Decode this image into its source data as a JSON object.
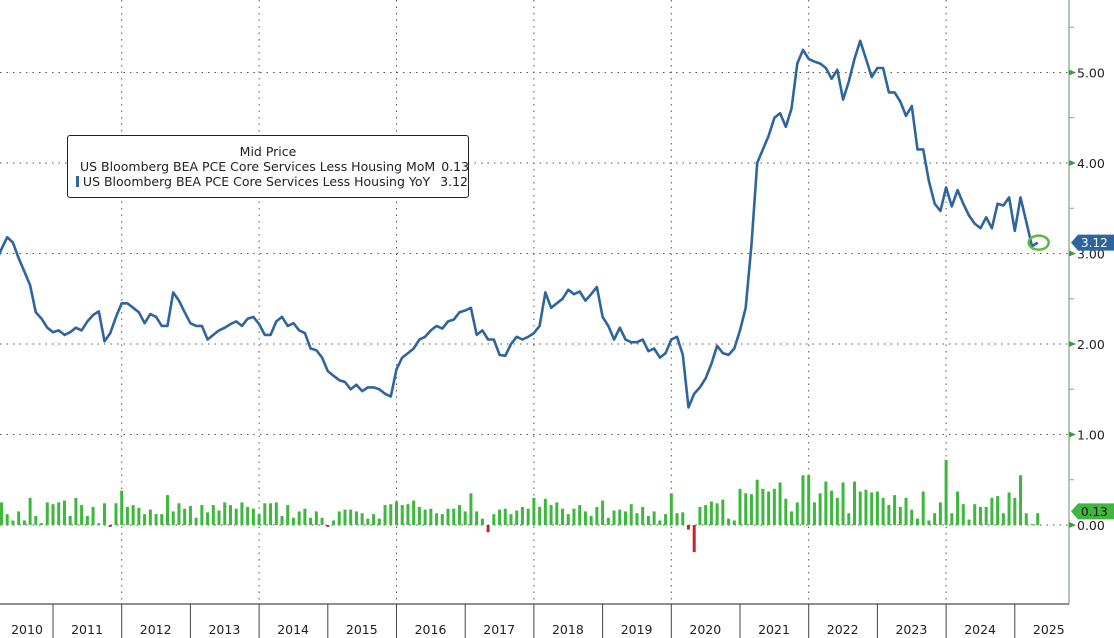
{
  "chart_data": {
    "type": "line+bar",
    "title": "",
    "legend_title": "Mid Price",
    "legend_position": "upper-left",
    "x_start": "2010-03",
    "x_frequency": "monthly",
    "x_tick_labels": [
      "2010",
      "2011",
      "2012",
      "2013",
      "2014",
      "2015",
      "2016",
      "2017",
      "2018",
      "2019",
      "2020",
      "2021",
      "2022",
      "2023",
      "2024",
      "2025"
    ],
    "y_tick_labels": [
      "0.00",
      "1.00",
      "2.00",
      "3.00",
      "4.00",
      "5.00"
    ],
    "ylim": [
      -0.9,
      5.8
    ],
    "y_axis_side": "right",
    "grid": true,
    "series": [
      {
        "name": "US Bloomberg BEA PCE Core Services Less Housing MoM",
        "last_value": "0.13",
        "type": "bar",
        "color": "#3db83d",
        "negative_color": "#c0262b",
        "values": [
          0.27,
          0.25,
          0.12,
          0.05,
          0.15,
          0.05,
          0.3,
          0.1,
          0.02,
          0.25,
          0.23,
          0.25,
          0.27,
          0.1,
          0.3,
          0.22,
          0.1,
          0.2,
          0.02,
          0.24,
          -0.02,
          0.24,
          0.38,
          0.2,
          0.22,
          0.19,
          0.12,
          0.17,
          0.12,
          0.12,
          0.33,
          0.15,
          0.24,
          0.18,
          0.21,
          0.08,
          0.22,
          0.14,
          0.22,
          0.16,
          0.25,
          0.22,
          0.18,
          0.25,
          0.2,
          0.18,
          0.12,
          0.24,
          0.24,
          0.25,
          0.1,
          0.22,
          0.08,
          0.15,
          0.18,
          0.08,
          0.15,
          0.08,
          -0.02,
          0.05,
          0.15,
          0.17,
          0.17,
          0.15,
          0.13,
          0.07,
          0.12,
          0.07,
          0.22,
          0.23,
          0.26,
          0.22,
          0.23,
          0.27,
          0.2,
          0.17,
          0.18,
          0.13,
          0.12,
          0.18,
          0.18,
          0.22,
          0.15,
          0.35,
          0.15,
          0.07,
          -0.08,
          0.12,
          0.17,
          0.18,
          0.12,
          0.16,
          0.2,
          0.18,
          0.3,
          0.2,
          0.29,
          0.22,
          0.25,
          0.18,
          0.12,
          0.18,
          0.22,
          0.15,
          0.1,
          0.2,
          0.27,
          0.08,
          0.16,
          0.17,
          0.15,
          0.23,
          0.13,
          0.2,
          0.1,
          0.15,
          0.05,
          0.12,
          0.35,
          0.13,
          0.14,
          -0.05,
          -0.3,
          0.2,
          0.22,
          0.26,
          0.24,
          0.28,
          0.07,
          0.05,
          0.4,
          0.35,
          0.34,
          0.5,
          0.4,
          0.37,
          0.4,
          0.47,
          0.29,
          0.15,
          0.25,
          0.55,
          0.55,
          0.25,
          0.35,
          0.48,
          0.38,
          0.3,
          0.47,
          0.13,
          0.48,
          0.37,
          0.39,
          0.36,
          0.37,
          0.3,
          0.22,
          0.33,
          0.2,
          0.3,
          0.17,
          0.07,
          0.37,
          0.05,
          0.13,
          0.25,
          0.72,
          0.13,
          0.37,
          0.23,
          0.06,
          0.23,
          0.2,
          0.2,
          0.3,
          0.32,
          0.13,
          0.36,
          0.3,
          0.55,
          0.13,
          0.01,
          0.13
        ]
      },
      {
        "name": "US Bloomberg BEA PCE Core Services Less Housing YoY",
        "last_value": "3.12",
        "type": "line",
        "color": "#2f659f",
        "values": [
          2.9,
          3.05,
          3.18,
          3.12,
          2.95,
          2.8,
          2.65,
          2.35,
          2.28,
          2.18,
          2.13,
          2.15,
          2.1,
          2.13,
          2.18,
          2.15,
          2.25,
          2.32,
          2.36,
          2.03,
          2.12,
          2.3,
          2.45,
          2.45,
          2.4,
          2.35,
          2.23,
          2.33,
          2.3,
          2.2,
          2.2,
          2.57,
          2.48,
          2.35,
          2.23,
          2.2,
          2.2,
          2.05,
          2.1,
          2.15,
          2.18,
          2.22,
          2.25,
          2.2,
          2.28,
          2.3,
          2.22,
          2.1,
          2.1,
          2.25,
          2.3,
          2.2,
          2.23,
          2.15,
          2.12,
          1.95,
          1.93,
          1.85,
          1.7,
          1.65,
          1.6,
          1.58,
          1.5,
          1.55,
          1.48,
          1.52,
          1.52,
          1.5,
          1.45,
          1.42,
          1.72,
          1.85,
          1.9,
          1.95,
          2.05,
          2.08,
          2.15,
          2.2,
          2.17,
          2.25,
          2.27,
          2.35,
          2.37,
          2.4,
          2.1,
          2.15,
          2.05,
          2.05,
          1.88,
          1.87,
          2.0,
          2.08,
          2.05,
          2.08,
          2.12,
          2.2,
          2.57,
          2.4,
          2.45,
          2.5,
          2.6,
          2.55,
          2.58,
          2.48,
          2.55,
          2.63,
          2.3,
          2.2,
          2.05,
          2.18,
          2.05,
          2.02,
          2.02,
          2.05,
          1.92,
          1.95,
          1.85,
          1.9,
          2.05,
          2.08,
          1.88,
          1.3,
          1.45,
          1.52,
          1.62,
          1.78,
          1.98,
          1.9,
          1.88,
          1.95,
          2.15,
          2.4,
          3.1,
          4.0,
          4.15,
          4.3,
          4.5,
          4.55,
          4.4,
          4.6,
          5.1,
          5.25,
          5.15,
          5.12,
          5.1,
          5.05,
          4.93,
          5.03,
          4.7,
          4.9,
          5.15,
          5.35,
          5.15,
          4.95,
          5.05,
          5.05,
          4.78,
          4.78,
          4.68,
          4.52,
          4.63,
          4.15,
          4.15,
          3.8,
          3.55,
          3.47,
          3.73,
          3.52,
          3.7,
          3.55,
          3.42,
          3.33,
          3.28,
          3.4,
          3.28,
          3.55,
          3.53,
          3.62,
          3.25,
          3.62,
          3.35,
          3.08,
          3.12
        ]
      }
    ]
  }
}
